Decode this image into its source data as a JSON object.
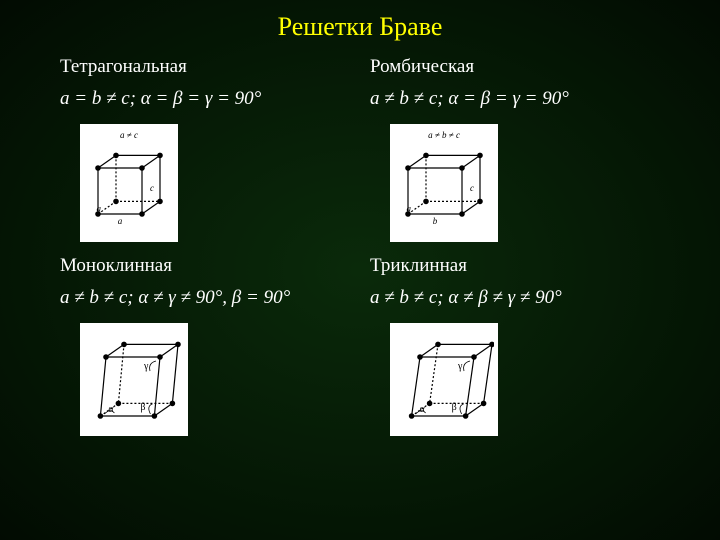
{
  "title": "Решетки Браве",
  "colors": {
    "background_center": "#0a2a0a",
    "background_edge": "#020b02",
    "title_color": "#ffff00",
    "text_color": "#ffffff",
    "lattice_bg": "#ffffff",
    "lattice_line": "#000000",
    "lattice_vertex": "#000000"
  },
  "typography": {
    "title_fontsize": 26,
    "text_fontsize": 19,
    "font_family": "Times New Roman"
  },
  "cells": [
    {
      "name": "Тетрагональная",
      "formula": "a = b ≠ c; α = β = γ = 90°",
      "lattice": {
        "width": 90,
        "height": 110,
        "top_label": "a ≠ c",
        "side_label": "c",
        "bottom_label": "a",
        "left_label": "a",
        "skew": 0,
        "angles": []
      }
    },
    {
      "name": "Ромбическая",
      "formula": "a ≠ b ≠ c; α = β = γ = 90°",
      "lattice": {
        "width": 100,
        "height": 110,
        "top_label": "a ≠ b ≠ c",
        "side_label": "c",
        "bottom_label": "b",
        "left_label": "a",
        "skew": 0,
        "angles": []
      }
    },
    {
      "name": "Моноклинная",
      "formula": "a ≠ b ≠ c; α ≠ γ ≠ 90°, β = 90°",
      "lattice": {
        "width": 100,
        "height": 105,
        "top_label": "",
        "side_label": "",
        "bottom_label": "",
        "left_label": "",
        "skew": 8,
        "angles": [
          "α",
          "β",
          "γ"
        ]
      }
    },
    {
      "name": "Триклинная",
      "formula": "a ≠ b ≠ c; α ≠ β ≠ γ ≠ 90°",
      "lattice": {
        "width": 100,
        "height": 105,
        "top_label": "",
        "side_label": "",
        "bottom_label": "",
        "left_label": "",
        "skew": 12,
        "angles": [
          "α",
          "β",
          "γ"
        ]
      }
    }
  ]
}
